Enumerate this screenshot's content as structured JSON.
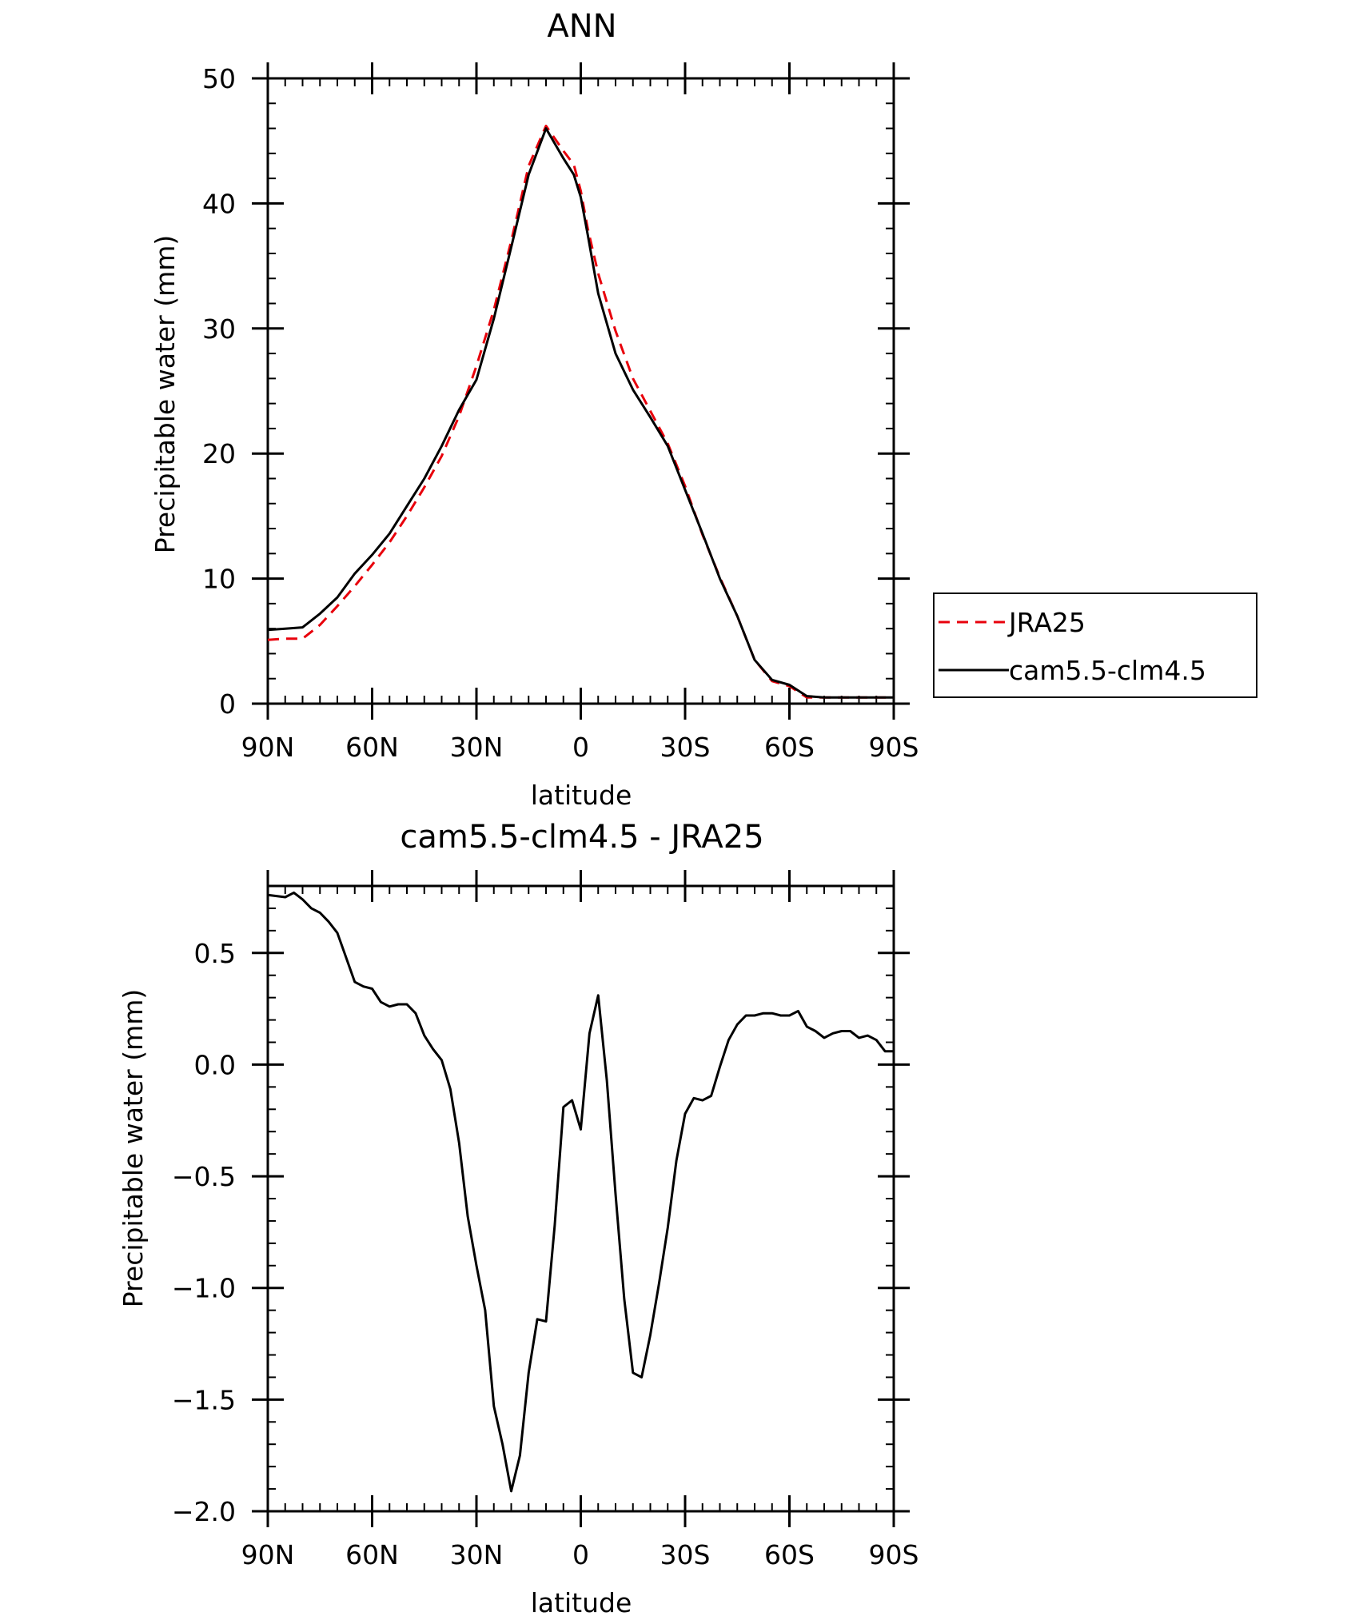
{
  "chart_data": [
    {
      "type": "line",
      "title": "ANN",
      "xlabel": "latitude",
      "ylabel": "Precipitable water (mm)",
      "xlim": [
        90,
        -90
      ],
      "ylim": [
        0,
        50
      ],
      "xticks": [
        {
          "value": 90,
          "label": "90N"
        },
        {
          "value": 60,
          "label": "60N"
        },
        {
          "value": 30,
          "label": "30N"
        },
        {
          "value": 0,
          "label": "0"
        },
        {
          "value": -30,
          "label": "30S"
        },
        {
          "value": -60,
          "label": "60S"
        },
        {
          "value": -90,
          "label": "90S"
        }
      ],
      "yticks": [
        {
          "value": 0,
          "label": "0"
        },
        {
          "value": 10,
          "label": "10"
        },
        {
          "value": 20,
          "label": "20"
        },
        {
          "value": 30,
          "label": "30"
        },
        {
          "value": 40,
          "label": "40"
        },
        {
          "value": 50,
          "label": "50"
        }
      ],
      "legend_position": "right",
      "series": [
        {
          "name": "JRA25",
          "color": "#e8000b",
          "dash": "dashed",
          "x": [
            90,
            85,
            80,
            75,
            70,
            65,
            60,
            55,
            50,
            45,
            40,
            35,
            30,
            25,
            20,
            15,
            10,
            5,
            2,
            0,
            -2,
            -5,
            -10,
            -15,
            -20,
            -25,
            -30,
            -35,
            -40,
            -45,
            -50,
            -55,
            -60,
            -65,
            -70,
            -75,
            -80,
            -85,
            -90
          ],
          "y": [
            5.1,
            5.2,
            5.2,
            6.3,
            7.8,
            9.4,
            11.1,
            12.9,
            15.0,
            17.3,
            19.8,
            23.0,
            27.0,
            31.5,
            37.0,
            43.0,
            46.2,
            44.2,
            43.1,
            41.0,
            38.0,
            34.4,
            29.8,
            26.0,
            23.4,
            20.8,
            17.4,
            13.5,
            10.1,
            7.0,
            3.5,
            1.8,
            1.4,
            0.5,
            0.5,
            0.5,
            0.5,
            0.5,
            0.5
          ]
        },
        {
          "name": "cam5.5-clm4.5",
          "color": "#000000",
          "dash": "solid",
          "x": [
            90,
            85,
            80,
            75,
            70,
            65,
            60,
            55,
            50,
            45,
            40,
            35,
            30,
            25,
            20,
            15,
            10,
            5,
            2,
            0,
            -2,
            -5,
            -10,
            -15,
            -20,
            -25,
            -30,
            -35,
            -40,
            -45,
            -50,
            -55,
            -60,
            -65,
            -70,
            -75,
            -80,
            -85,
            -90
          ],
          "y": [
            5.9,
            6.0,
            6.1,
            7.2,
            8.5,
            10.4,
            11.9,
            13.6,
            15.8,
            18.0,
            20.6,
            23.5,
            25.9,
            30.8,
            36.5,
            42.3,
            46.0,
            43.6,
            42.3,
            40.5,
            37.5,
            32.8,
            28.0,
            25.1,
            22.9,
            20.6,
            17.1,
            13.6,
            10.0,
            7.0,
            3.5,
            1.9,
            1.5,
            0.6,
            0.5,
            0.5,
            0.5,
            0.5,
            0.5
          ]
        }
      ]
    },
    {
      "type": "line",
      "title": "cam5.5-clm4.5 - JRA25",
      "xlabel": "latitude",
      "ylabel": "Precipitable water (mm)",
      "xlim": [
        90,
        -90
      ],
      "ylim": [
        -2.0,
        0.8
      ],
      "xticks": [
        {
          "value": 90,
          "label": "90N"
        },
        {
          "value": 60,
          "label": "60N"
        },
        {
          "value": 30,
          "label": "30N"
        },
        {
          "value": 0,
          "label": "0"
        },
        {
          "value": -30,
          "label": "30S"
        },
        {
          "value": -60,
          "label": "60S"
        },
        {
          "value": -90,
          "label": "90S"
        }
      ],
      "yticks": [
        {
          "value": 0.5,
          "label": "0.5"
        },
        {
          "value": 0.0,
          "label": "0.0"
        },
        {
          "value": -0.5,
          "label": "−0.5"
        },
        {
          "value": -1.0,
          "label": "−1.0"
        },
        {
          "value": -1.5,
          "label": "−1.5"
        },
        {
          "value": -2.0,
          "label": "−2.0"
        }
      ],
      "series": [
        {
          "color": "#000000",
          "dash": "solid",
          "x": [
            90,
            85,
            82.5,
            80,
            77.5,
            75,
            72.5,
            70,
            67.5,
            65,
            62.5,
            60,
            57.5,
            55,
            52.5,
            50,
            47.5,
            45,
            42.5,
            40,
            37.5,
            35,
            32.5,
            30,
            27.5,
            25,
            22.5,
            20,
            17.5,
            15,
            12.5,
            10,
            7.5,
            5,
            2.5,
            0,
            -2.5,
            -5,
            -7.5,
            -10,
            -12.5,
            -15,
            -17.5,
            -20,
            -22.5,
            -25,
            -27.5,
            -30,
            -32.5,
            -35,
            -37.5,
            -40,
            -42.5,
            -45,
            -47.5,
            -50,
            -52.5,
            -55,
            -57.5,
            -60,
            -62.5,
            -65,
            -67.5,
            -70,
            -72.5,
            -75,
            -77.5,
            -80,
            -82.5,
            -85,
            -87.5,
            -90
          ],
          "y": [
            0.76,
            0.75,
            0.77,
            0.74,
            0.7,
            0.68,
            0.64,
            0.59,
            0.48,
            0.37,
            0.35,
            0.34,
            0.28,
            0.26,
            0.27,
            0.27,
            0.23,
            0.13,
            0.07,
            0.02,
            -0.11,
            -0.35,
            -0.68,
            -0.9,
            -1.1,
            -1.53,
            -1.7,
            -1.91,
            -1.75,
            -1.38,
            -1.14,
            -1.15,
            -0.72,
            -0.19,
            -0.16,
            -0.29,
            0.14,
            0.31,
            -0.07,
            -0.58,
            -1.05,
            -1.38,
            -1.4,
            -1.21,
            -0.98,
            -0.73,
            -0.43,
            -0.22,
            -0.15,
            -0.16,
            -0.14,
            -0.01,
            0.11,
            0.18,
            0.22,
            0.22,
            0.23,
            0.23,
            0.22,
            0.22,
            0.24,
            0.17,
            0.15,
            0.12,
            0.14,
            0.15,
            0.15,
            0.12,
            0.13,
            0.11,
            0.06,
            0.06
          ]
        }
      ]
    }
  ]
}
